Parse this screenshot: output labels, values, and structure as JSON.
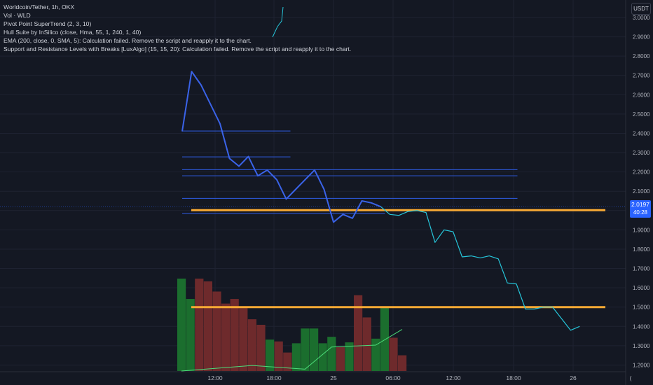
{
  "legend": {
    "symbol": "Worldcoin/Tether, 1h, OKX",
    "volume": "Vol · WLD",
    "indicators": [
      "Pivot Point SuperTrend (2, 3, 10)",
      "Hull Suite by InSilico (close, Hma, 55, 1, 240, 1, 40)",
      "EMA (200, close, 0, SMA, 5): Calculation failed. Remove the script and reapply it to the chart.",
      " Support and Resistance Levels with Breaks [LuxAlgo] (15, 15, 20): Calculation failed. Remove the script and reapply it to the chart."
    ]
  },
  "currency_button": "USDT",
  "last_price": {
    "value": "2.0197",
    "countdown": "40:28"
  },
  "colors": {
    "background": "#141823",
    "grid": "#1e2231",
    "price_line": "#2962ff",
    "drawing_line": "#2e5ce6",
    "projection": "#26c6da",
    "support": "#f7a934",
    "volume_up": "#1b6e2e",
    "volume_down": "#6e2a2c",
    "ma_line": "#4cdd7a"
  },
  "chart_data": {
    "type": "line",
    "x_ticks": [
      "12:00",
      "18:00",
      "25",
      "06:00",
      "12:00",
      "18:00",
      "26",
      "("
    ],
    "y_ticks": [
      "3.0000",
      "2.9000",
      "2.8000",
      "2.7000",
      "2.6000",
      "2.5000",
      "2.4000",
      "2.3000",
      "2.2000",
      "2.1000",
      "2.0000",
      "1.9000",
      "1.8000",
      "1.7000",
      "1.6000",
      "1.5000",
      "1.4000",
      "1.3000",
      "1.2000"
    ],
    "ylim": [
      1.175,
      3.055
    ],
    "price_path": [
      [
        0,
        2.41
      ],
      [
        1,
        2.72
      ],
      [
        2,
        2.65
      ],
      [
        3,
        2.55
      ],
      [
        4,
        2.45
      ],
      [
        5,
        2.27
      ],
      [
        6,
        2.23
      ],
      [
        7,
        2.28
      ],
      [
        8,
        2.18
      ],
      [
        9,
        2.21
      ],
      [
        10,
        2.16
      ],
      [
        11,
        2.06
      ],
      [
        12,
        2.11
      ],
      [
        13,
        2.16
      ],
      [
        14,
        2.21
      ],
      [
        15,
        2.11
      ],
      [
        16,
        1.94
      ],
      [
        17,
        1.98
      ],
      [
        18,
        1.96
      ],
      [
        19,
        2.05
      ],
      [
        20,
        2.04
      ],
      [
        21,
        2.02
      ]
    ],
    "projection_path": [
      [
        21,
        2.02
      ],
      [
        22,
        1.98
      ],
      [
        23,
        1.975
      ],
      [
        24,
        1.995
      ],
      [
        25,
        2.0
      ],
      [
        26,
        1.99
      ],
      [
        27,
        1.835
      ],
      [
        28,
        1.9
      ],
      [
        29,
        1.89
      ],
      [
        30,
        1.76
      ],
      [
        31,
        1.765
      ],
      [
        32,
        1.755
      ],
      [
        33,
        1.765
      ],
      [
        34,
        1.75
      ],
      [
        35,
        1.625
      ],
      [
        36,
        1.62
      ],
      [
        37,
        1.49
      ],
      [
        38,
        1.49
      ],
      [
        39,
        1.5
      ],
      [
        40,
        1.5
      ],
      [
        41,
        1.44
      ],
      [
        42,
        1.38
      ],
      [
        43,
        1.4
      ]
    ],
    "horizontal_levels": [
      {
        "value": 2.412,
        "from": 0,
        "to": 11
      },
      {
        "value": 2.278,
        "from": 0,
        "to": 11
      },
      {
        "value": 2.212,
        "from": 0,
        "to": 35
      },
      {
        "value": 2.18,
        "from": 0,
        "to": 35
      },
      {
        "value": 2.063,
        "from": 0,
        "to": 35
      },
      {
        "value": 1.985,
        "from": 0,
        "to": 21
      }
    ],
    "support_levels": [
      2.002,
      1.5
    ],
    "volume_bars": [
      {
        "v": 1.0,
        "up": true
      },
      {
        "v": 0.78,
        "up": true
      },
      {
        "v": 1.0,
        "up": false
      },
      {
        "v": 0.97,
        "up": false
      },
      {
        "v": 0.86,
        "up": false
      },
      {
        "v": 0.73,
        "up": false
      },
      {
        "v": 0.78,
        "up": false
      },
      {
        "v": 0.68,
        "up": false
      },
      {
        "v": 0.56,
        "up": false
      },
      {
        "v": 0.5,
        "up": false
      },
      {
        "v": 0.34,
        "up": true
      },
      {
        "v": 0.32,
        "up": false
      },
      {
        "v": 0.2,
        "up": false
      },
      {
        "v": 0.3,
        "up": true
      },
      {
        "v": 0.46,
        "up": true
      },
      {
        "v": 0.46,
        "up": true
      },
      {
        "v": 0.3,
        "up": true
      },
      {
        "v": 0.37,
        "up": true
      },
      {
        "v": 0.26,
        "up": false
      },
      {
        "v": 0.31,
        "up": true
      },
      {
        "v": 0.82,
        "up": false
      },
      {
        "v": 0.58,
        "up": false
      },
      {
        "v": 0.35,
        "up": true
      },
      {
        "v": 0.69,
        "up": true
      },
      {
        "v": 0.36,
        "up": false
      },
      {
        "v": 0.17,
        "up": false
      }
    ],
    "volume_ma": [
      [
        0,
        0.0
      ],
      [
        8,
        0.06
      ],
      [
        14,
        0.02
      ],
      [
        17,
        0.26
      ],
      [
        22,
        0.28
      ],
      [
        25,
        0.45
      ]
    ]
  }
}
